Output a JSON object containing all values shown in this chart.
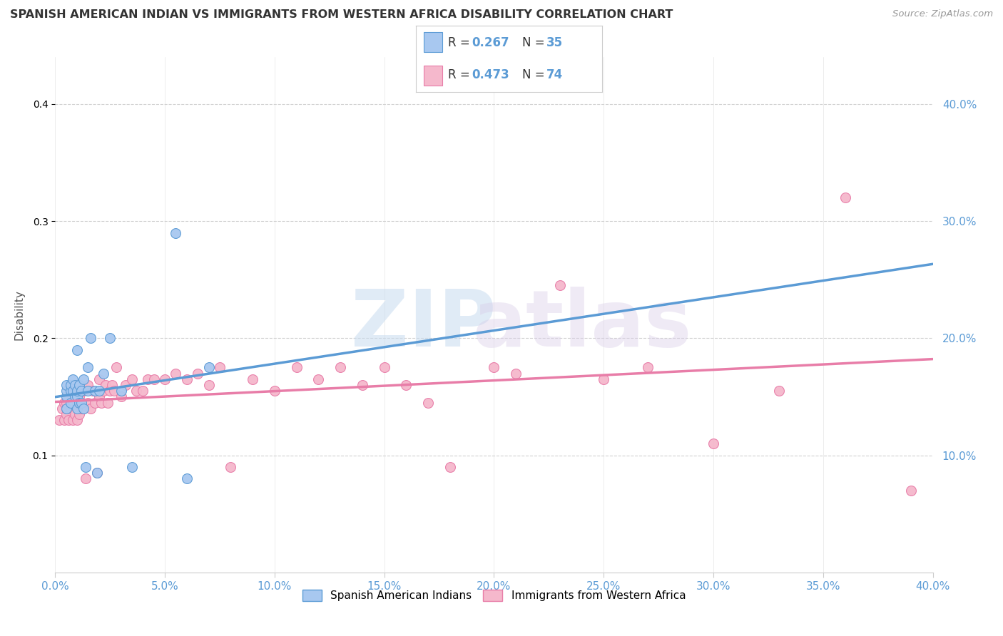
{
  "title": "SPANISH AMERICAN INDIAN VS IMMIGRANTS FROM WESTERN AFRICA DISABILITY CORRELATION CHART",
  "source": "Source: ZipAtlas.com",
  "ylabel": "Disability",
  "xlim": [
    0.0,
    0.4
  ],
  "ylim": [
    0.0,
    0.44
  ],
  "yticks": [
    0.1,
    0.2,
    0.3,
    0.4
  ],
  "xticks": [
    0.0,
    0.05,
    0.1,
    0.15,
    0.2,
    0.25,
    0.3,
    0.35,
    0.4
  ],
  "color_blue": "#A8C8F0",
  "color_pink": "#F5B8CC",
  "color_blue_line": "#5B9BD5",
  "color_pink_line": "#E87DA8",
  "color_blue_dark": "#4472C4",
  "legend_R1": "0.267",
  "legend_N1": "35",
  "legend_R2": "0.473",
  "legend_N2": "74",
  "blue_scatter_x": [
    0.005,
    0.005,
    0.005,
    0.005,
    0.007,
    0.007,
    0.007,
    0.008,
    0.008,
    0.009,
    0.009,
    0.01,
    0.01,
    0.01,
    0.01,
    0.011,
    0.011,
    0.012,
    0.012,
    0.013,
    0.013,
    0.014,
    0.015,
    0.015,
    0.016,
    0.018,
    0.019,
    0.02,
    0.022,
    0.025,
    0.03,
    0.035,
    0.055,
    0.06,
    0.07
  ],
  "blue_scatter_y": [
    0.14,
    0.15,
    0.155,
    0.16,
    0.145,
    0.155,
    0.16,
    0.155,
    0.165,
    0.15,
    0.16,
    0.14,
    0.15,
    0.155,
    0.19,
    0.145,
    0.16,
    0.145,
    0.155,
    0.14,
    0.165,
    0.09,
    0.155,
    0.175,
    0.2,
    0.155,
    0.085,
    0.155,
    0.17,
    0.2,
    0.155,
    0.09,
    0.29,
    0.08,
    0.175
  ],
  "pink_scatter_x": [
    0.002,
    0.003,
    0.004,
    0.004,
    0.005,
    0.005,
    0.005,
    0.006,
    0.006,
    0.007,
    0.007,
    0.008,
    0.008,
    0.009,
    0.009,
    0.01,
    0.01,
    0.01,
    0.011,
    0.011,
    0.012,
    0.012,
    0.013,
    0.013,
    0.014,
    0.015,
    0.015,
    0.016,
    0.017,
    0.018,
    0.019,
    0.02,
    0.02,
    0.021,
    0.022,
    0.023,
    0.024,
    0.025,
    0.026,
    0.027,
    0.028,
    0.03,
    0.032,
    0.035,
    0.037,
    0.04,
    0.042,
    0.045,
    0.05,
    0.055,
    0.06,
    0.065,
    0.07,
    0.075,
    0.08,
    0.09,
    0.1,
    0.11,
    0.12,
    0.13,
    0.14,
    0.15,
    0.16,
    0.17,
    0.18,
    0.2,
    0.21,
    0.23,
    0.25,
    0.27,
    0.3,
    0.33,
    0.36,
    0.39
  ],
  "pink_scatter_y": [
    0.13,
    0.14,
    0.13,
    0.145,
    0.135,
    0.14,
    0.145,
    0.13,
    0.15,
    0.14,
    0.155,
    0.13,
    0.145,
    0.135,
    0.155,
    0.13,
    0.145,
    0.16,
    0.135,
    0.15,
    0.14,
    0.155,
    0.14,
    0.155,
    0.08,
    0.145,
    0.16,
    0.14,
    0.155,
    0.145,
    0.085,
    0.15,
    0.165,
    0.145,
    0.155,
    0.16,
    0.145,
    0.155,
    0.16,
    0.155,
    0.175,
    0.15,
    0.16,
    0.165,
    0.155,
    0.155,
    0.165,
    0.165,
    0.165,
    0.17,
    0.165,
    0.17,
    0.16,
    0.175,
    0.09,
    0.165,
    0.155,
    0.175,
    0.165,
    0.175,
    0.16,
    0.175,
    0.16,
    0.145,
    0.09,
    0.175,
    0.17,
    0.245,
    0.165,
    0.175,
    0.11,
    0.155,
    0.32,
    0.07
  ]
}
